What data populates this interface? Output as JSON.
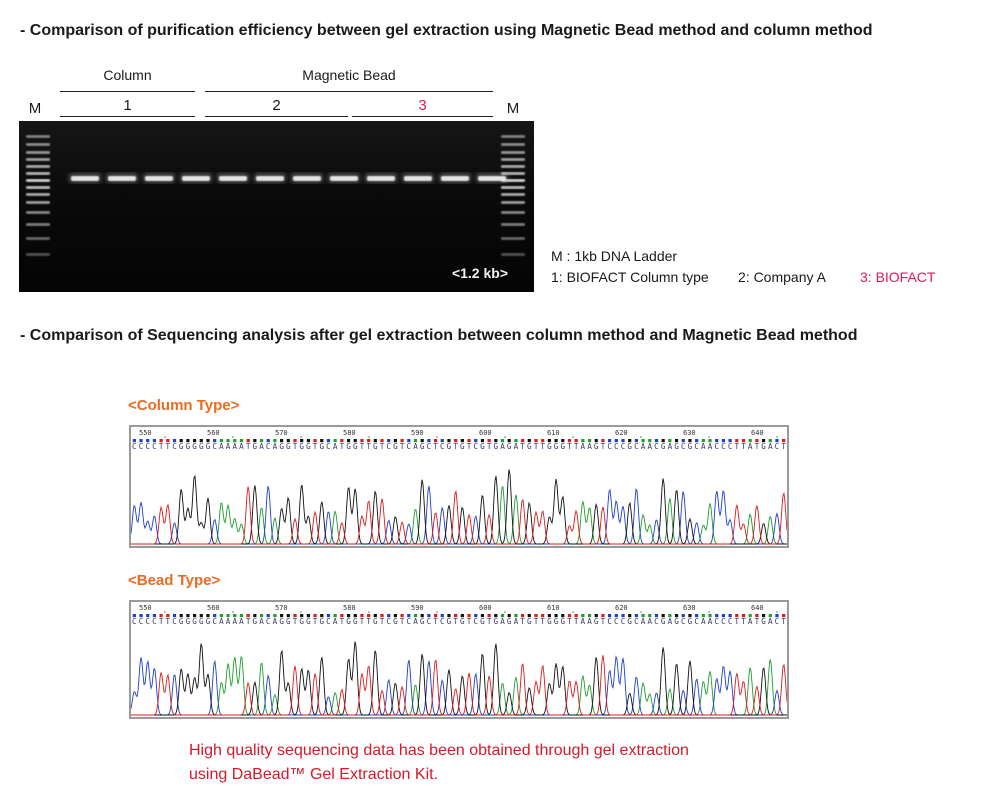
{
  "section1": {
    "heading": "-  Comparison of purification efficiency between gel extraction using Magnetic Bead method and column method",
    "group_labels": {
      "column": "Column",
      "magnetic_bead": "Magnetic Bead"
    },
    "lane_labels": {
      "marker_left": "M",
      "lane1": "1",
      "lane2": "2",
      "lane3": "3",
      "marker_right": "M"
    },
    "size_label": "<1.2 kb>",
    "legend": {
      "ladder": "M : 1kb DNA Ladder",
      "item1": "1: BIOFACT Column type",
      "item2": "2: Company A",
      "item3": "3: BIOFACT"
    },
    "colors": {
      "highlight": "#d81b60"
    }
  },
  "section2": {
    "heading": "- Comparison of Sequencing analysis after gel extraction between column method and Magnetic Bead method",
    "column_title": "<Column Type>",
    "bead_title": "<Bead Type>",
    "position_ticks": [
      "550",
      "560",
      "570",
      "580",
      "590",
      "600",
      "610",
      "620",
      "630",
      "640"
    ],
    "sequence": "CCCCTTCGGGGGCAAAATGACAGGTGGTGCATGGTTGTCGTCAGCTCGTGTCGTGAGATGTTGGGTTAAGTCCCGCAACGAGCGCAACCCTTATGACT",
    "base_colors": {
      "A": "#1e9e2e",
      "C": "#1d3fd0",
      "G": "#111111",
      "T": "#e01a1a"
    },
    "note_line1": "High quality sequencing data has been obtained through gel extraction",
    "note_line2": "using DaBead™ Gel Extraction Kit."
  }
}
